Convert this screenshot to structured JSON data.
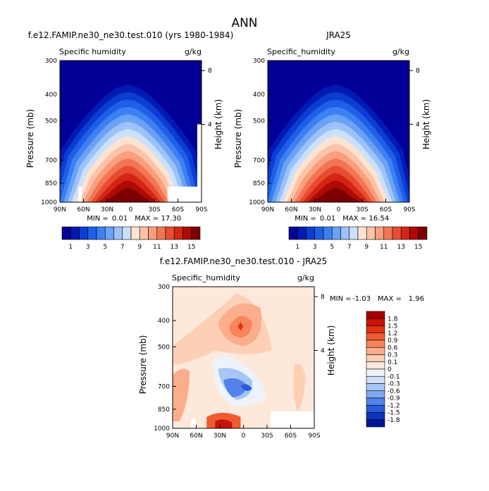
{
  "page": {
    "title": "ANN"
  },
  "chart_data": [
    {
      "type": "heatmap",
      "title": "f.e12.FAMIP.ne30_ne30.test.010 (yrs 1980-1984)",
      "field_label": "Specific humidity",
      "units": "g/kg",
      "xlabel": "",
      "ylabel": "Pressure (mb)",
      "ylabel_right": "Height (km)",
      "x_ticks": [
        "90N",
        "60N",
        "30N",
        "0",
        "30S",
        "60S",
        "90S"
      ],
      "y_ticks": [
        "300",
        "400",
        "500",
        "700",
        "850",
        "1000"
      ],
      "height_ticks": [
        "8",
        "4"
      ],
      "ylim": [
        300,
        1000
      ],
      "xlim": [
        90,
        -90
      ],
      "stats": {
        "min_label": "MIN =",
        "min": "0.01",
        "max_label": "MAX =",
        "max": "17.30"
      },
      "colorbar": {
        "levels": [
          "1",
          "3",
          "5",
          "7",
          "9",
          "11",
          "13",
          "15"
        ],
        "colors": [
          "#000096",
          "#0319b4",
          "#0a3dd2",
          "#1f5fe8",
          "#3c80f2",
          "#6aa2f5",
          "#9cc2f8",
          "#cce0fb",
          "#fde3d2",
          "#fcc3a8",
          "#f99f7e",
          "#f37654",
          "#e84c32",
          "#d22614",
          "#b00a05",
          "#7d0000"
        ]
      },
      "peak_value": 17.3
    },
    {
      "type": "heatmap",
      "title": "JRA25",
      "field_label": "Specific_humidity",
      "units": "g/kg",
      "xlabel": "",
      "ylabel": "Pressure (mb)",
      "ylabel_right": "Height (km)",
      "x_ticks": [
        "90N",
        "60N",
        "30N",
        "0",
        "30S",
        "60S",
        "90S"
      ],
      "y_ticks": [
        "300",
        "400",
        "500",
        "700",
        "850",
        "1000"
      ],
      "height_ticks": [
        "8",
        "4"
      ],
      "ylim": [
        300,
        1000
      ],
      "xlim": [
        90,
        -90
      ],
      "stats": {
        "min_label": "MIN =",
        "min": "0.01",
        "max_label": "MAX =",
        "max": "16.54"
      },
      "colorbar": {
        "levels": [
          "1",
          "3",
          "5",
          "7",
          "9",
          "11",
          "13",
          "15"
        ],
        "colors": [
          "#000096",
          "#0319b4",
          "#0a3dd2",
          "#1f5fe8",
          "#3c80f2",
          "#6aa2f5",
          "#9cc2f8",
          "#cce0fb",
          "#fde3d2",
          "#fcc3a8",
          "#f99f7e",
          "#f37654",
          "#e84c32",
          "#d22614",
          "#b00a05",
          "#7d0000"
        ]
      },
      "peak_value": 16.54
    },
    {
      "type": "heatmap",
      "title": "f.e12.FAMIP.ne30_ne30.test.010 - JRA25",
      "field_label": "Specific_humidity",
      "units": "g/kg",
      "xlabel": "",
      "ylabel": "Pressure (mb)",
      "ylabel_right": "Height (km)",
      "x_ticks": [
        "90N",
        "60N",
        "30N",
        "0",
        "30S",
        "60S",
        "90S"
      ],
      "y_ticks": [
        "300",
        "400",
        "500",
        "700",
        "850",
        "1000"
      ],
      "height_ticks": [
        "8",
        "4"
      ],
      "ylim": [
        300,
        1000
      ],
      "xlim": [
        90,
        -90
      ],
      "stats": {
        "min_label": "MIN =",
        "min": "-1.03",
        "max_label": "MAX =",
        "max": "1.96"
      },
      "colorbar": {
        "levels": [
          "1.8",
          "1.5",
          "1.2",
          "0.9",
          "0.6",
          "0.3",
          "0.1",
          "0",
          "-0.1",
          "-0.3",
          "-0.6",
          "-0.9",
          "-1.2",
          "-1.5",
          "-1.8"
        ],
        "colors": [
          "#a50000",
          "#c81405",
          "#e23214",
          "#f05a32",
          "#f8845c",
          "#fcae8c",
          "#fdd0b6",
          "#fde8da",
          "#eef2fb",
          "#cfe0fa",
          "#a6c6f6",
          "#7ea8f0",
          "#5482e8",
          "#2a5ad9",
          "#0c32c0",
          "#001496"
        ]
      }
    }
  ]
}
